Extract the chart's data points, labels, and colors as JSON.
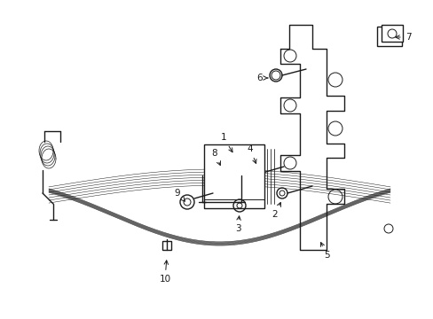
{
  "bg_color": "#ffffff",
  "line_color": "#1a1a1a",
  "lw": 1.0,
  "tlw": 0.7,
  "fig_width": 4.89,
  "fig_height": 3.6,
  "dpi": 100,
  "fs": 7.5,
  "xlim": [
    0,
    489
  ],
  "ylim": [
    0,
    360
  ]
}
